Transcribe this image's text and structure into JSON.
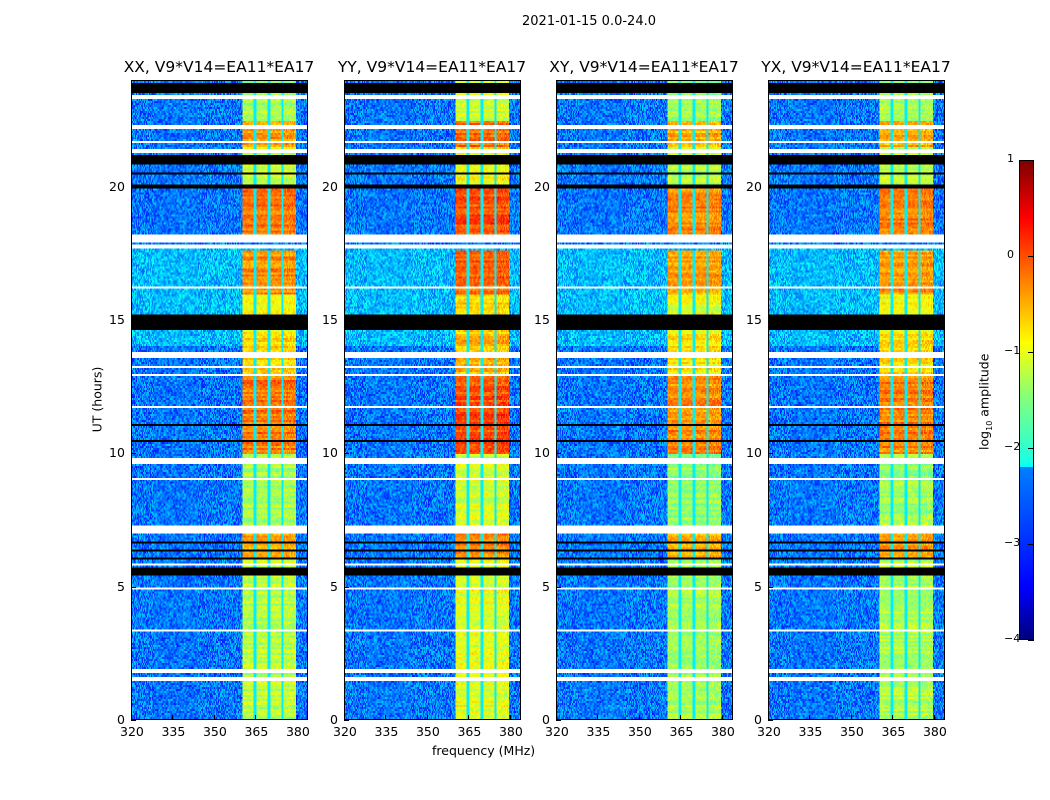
{
  "suptitle": "2021-01-15 0.0-24.0",
  "chart_data": {
    "type": "heatmap",
    "title": "2021-01-15 0.0-24.0",
    "xlabel": "frequency (MHz)",
    "ylabel": "UT (hours)",
    "xlim": [
      320,
      384
    ],
    "ylim": [
      0,
      24
    ],
    "xticks": [
      "320",
      "335",
      "350",
      "365",
      "380"
    ],
    "yticks": [
      "0",
      "5",
      "10",
      "15",
      "20"
    ],
    "panels": [
      {
        "title": "XX, V9*V14=EA11*EA17",
        "band_boost": 0.0
      },
      {
        "title": "YY, V9*V14=EA11*EA17",
        "band_boost": 0.2
      },
      {
        "title": "XY, V9*V14=EA11*EA17",
        "band_boost": -0.1
      },
      {
        "title": "YX, V9*V14=EA11*EA17",
        "band_boost": -0.05
      }
    ],
    "background_level": -2.8,
    "rfi_band_mhz": [
      360.5,
      380
    ],
    "rfi_band_gaps_mhz": [
      365,
      370,
      375
    ],
    "rfi_band_levels": [
      [
        0,
        6,
        -1.2
      ],
      [
        6,
        7,
        -0.4
      ],
      [
        7,
        10,
        -1.3
      ],
      [
        10,
        13,
        -0.2
      ],
      [
        13,
        14.5,
        -0.7
      ],
      [
        14.5,
        16,
        -0.9
      ],
      [
        16,
        17.6,
        -0.3
      ],
      [
        18.2,
        20,
        -0.2
      ],
      [
        20,
        21.5,
        -1.1
      ],
      [
        21.5,
        22.5,
        -0.4
      ],
      [
        22.5,
        24,
        -1.3
      ]
    ],
    "flagged_white_ut": [
      [
        1.45,
        1.55
      ],
      [
        1.75,
        1.85
      ],
      [
        2.0,
        2.05
      ],
      [
        2.9,
        2.95
      ],
      [
        3.3,
        3.35
      ],
      [
        4.85,
        4.95
      ],
      [
        5.8,
        5.85
      ],
      [
        7.0,
        7.3
      ],
      [
        8.3,
        8.35
      ],
      [
        9.0,
        9.05
      ],
      [
        9.6,
        9.8
      ],
      [
        11.7,
        11.75
      ],
      [
        12.9,
        12.95
      ],
      [
        13.2,
        13.25
      ],
      [
        13.55,
        13.8
      ],
      [
        16.2,
        16.25
      ],
      [
        17.7,
        17.85
      ],
      [
        17.95,
        18.2
      ],
      [
        21.3,
        21.45
      ],
      [
        21.7,
        21.75
      ],
      [
        22.2,
        22.35
      ],
      [
        23.35,
        23.45
      ]
    ],
    "flagged_black_ut": [
      [
        5.4,
        5.7
      ],
      [
        6.0,
        6.05
      ],
      [
        6.3,
        6.35
      ],
      [
        6.6,
        6.65
      ],
      [
        10.45,
        10.5
      ],
      [
        11.05,
        11.1
      ],
      [
        12.35,
        12.4
      ],
      [
        14.6,
        15.2
      ],
      [
        15.5,
        15.55
      ],
      [
        19.95,
        20.1
      ],
      [
        20.5,
        20.55
      ],
      [
        20.85,
        21.2
      ],
      [
        23.55,
        23.95
      ]
    ],
    "colorbar": {
      "label_prefix": "log",
      "label_sub": "10",
      "label_suffix": " amplitude",
      "range": [
        -4,
        1
      ],
      "ticks": [
        "1",
        "0",
        "−1",
        "−2",
        "−3",
        "−4"
      ],
      "colormap": "jet"
    }
  }
}
